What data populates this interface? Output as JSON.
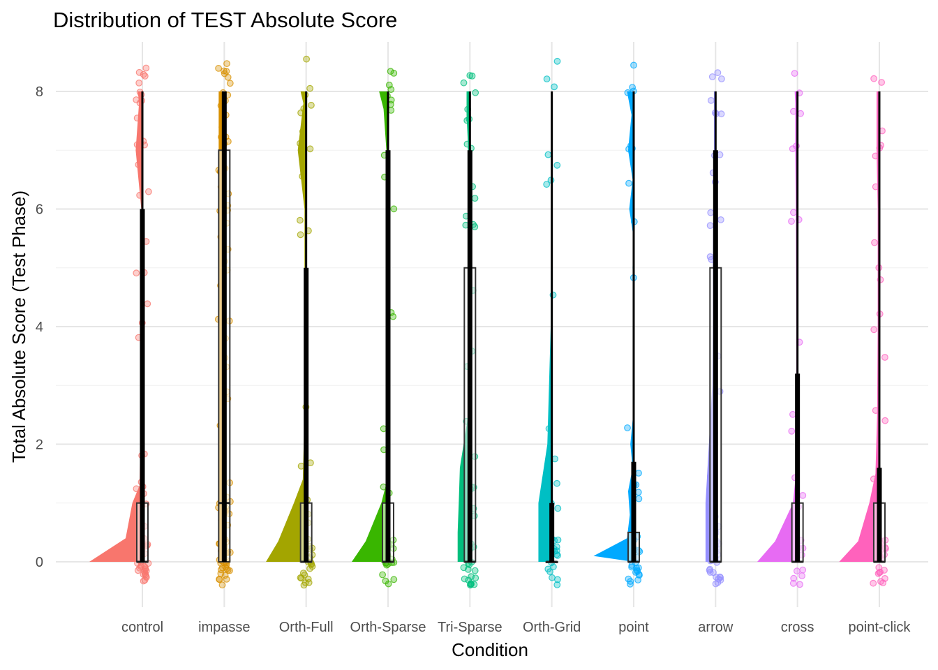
{
  "chart_data": {
    "type": "raincloud",
    "title": "Distribution of TEST Absolute Score",
    "xlabel": "Condition",
    "ylabel": "Total Absolute Score (Test Phase)",
    "ylim": [
      -0.8,
      8.6
    ],
    "yticks": [
      0,
      2,
      4,
      6,
      8
    ],
    "grid": true,
    "legend": "none",
    "categories": [
      "control",
      "impasse",
      "Orth-Full",
      "Orth-Sparse",
      "Tri-Sparse",
      "Orth-Grid",
      "point",
      "arrow",
      "cross",
      "point-click"
    ],
    "series": [
      {
        "category": "control",
        "color": "#F8766D",
        "box": {
          "q1": 0,
          "median": 0,
          "q3": 1
        },
        "interval": {
          "thick": [
            0,
            6
          ],
          "thin": [
            0,
            8
          ]
        },
        "density": [
          [
            0,
            0.95
          ],
          [
            0.4,
            0.3
          ],
          [
            1,
            0.18
          ],
          [
            1.3,
            0.05
          ],
          [
            2.5,
            0.03
          ],
          [
            4,
            0.03
          ],
          [
            5,
            0.03
          ],
          [
            6,
            0.02
          ],
          [
            7,
            0.12
          ],
          [
            7.8,
            0.06
          ],
          [
            8,
            0.08
          ]
        ],
        "points": [
          0,
          0,
          0,
          0,
          0,
          0,
          0,
          0,
          0,
          0,
          0,
          0,
          0,
          0,
          0,
          0,
          0,
          0,
          0,
          0,
          0,
          0,
          0,
          0,
          0,
          0,
          0,
          0,
          1,
          1,
          1,
          1,
          1,
          1,
          1,
          1,
          1,
          1.2,
          1.8,
          2,
          3.7,
          3.8,
          4.3,
          4.8,
          5,
          5.3,
          6,
          6.3,
          6.7,
          6.8,
          7,
          7.2,
          7.3,
          7.6,
          7.7,
          7.9,
          8,
          8,
          8,
          8,
          8,
          8.2,
          8.3
        ]
      },
      {
        "category": "impasse",
        "color": "#D89000",
        "box": {
          "q1": 0,
          "median": 1,
          "q3": 7
        },
        "interval": {
          "thick": [
            0,
            8
          ],
          "thin": [
            0,
            8
          ]
        },
        "density": [
          [
            0,
            0.1
          ],
          [
            0.5,
            0.1
          ],
          [
            1,
            0.1
          ],
          [
            2,
            0.1
          ],
          [
            4,
            0.1
          ],
          [
            6,
            0.1
          ],
          [
            7,
            0.1
          ],
          [
            8,
            0.1
          ]
        ],
        "points": [
          0,
          0,
          0,
          0,
          0,
          0,
          0,
          0,
          0,
          0,
          0,
          0,
          0,
          0,
          0,
          0,
          0,
          0,
          0,
          0,
          0,
          0,
          0,
          0,
          0,
          0,
          0,
          0,
          0,
          0,
          0,
          0,
          1,
          1,
          1,
          1,
          1,
          1,
          1,
          1,
          1,
          1,
          1,
          1,
          1.2,
          1.4,
          1.8,
          2,
          2.2,
          2.5,
          2.8,
          3,
          3.3,
          3.7,
          3.8,
          3.9,
          4,
          4.2,
          4.6,
          4.8,
          5,
          5.2,
          5.5,
          5.7,
          5.9,
          6,
          6,
          6.2,
          6.3,
          6.5,
          6.7,
          6.8,
          6.9,
          7,
          7,
          7,
          7,
          7.2,
          7.5,
          7.7,
          7.8,
          8,
          8,
          8,
          8,
          8,
          8,
          8,
          8.2,
          8.3,
          8.3
        ]
      },
      {
        "category": "Orth-Full",
        "color": "#A3A500",
        "box": {
          "q1": 0,
          "median": 0,
          "q3": 1
        },
        "interval": {
          "thick": [
            0,
            5
          ],
          "thin": [
            0,
            8
          ]
        },
        "density": [
          [
            0,
            0.72
          ],
          [
            0.35,
            0.5
          ],
          [
            1,
            0.22
          ],
          [
            1.4,
            0.06
          ],
          [
            2.5,
            0.03
          ],
          [
            4,
            0.03
          ],
          [
            5,
            0.03
          ],
          [
            6,
            0.03
          ],
          [
            7,
            0.15
          ],
          [
            7.8,
            0.05
          ],
          [
            8,
            0.1
          ]
        ],
        "points": [
          0,
          0,
          0,
          0,
          0,
          0,
          0,
          0,
          0,
          0,
          0,
          0,
          0,
          0,
          0,
          0,
          0,
          0,
          0,
          0,
          0,
          0,
          0,
          1,
          1,
          1,
          1,
          1,
          1,
          1.3,
          1.8,
          2,
          2.3,
          5.4,
          5.7,
          6.1,
          6.4,
          6.9,
          7,
          7.1,
          7.3,
          7.8,
          8,
          8,
          8.1,
          8.2,
          8.3
        ]
      },
      {
        "category": "Orth-Sparse",
        "color": "#39B600",
        "box": {
          "q1": 0,
          "median": 0,
          "q3": 1
        },
        "interval": {
          "thick": [
            0,
            7
          ],
          "thin": [
            0,
            8
          ]
        },
        "density": [
          [
            0,
            0.65
          ],
          [
            0.35,
            0.4
          ],
          [
            1,
            0.12
          ],
          [
            1.3,
            0.04
          ],
          [
            2.5,
            0.02
          ],
          [
            4,
            0.03
          ],
          [
            5,
            0.02
          ],
          [
            6,
            0.02
          ],
          [
            7,
            0.03
          ],
          [
            7.7,
            0.08
          ],
          [
            8,
            0.16
          ]
        ],
        "points": [
          0,
          0,
          0,
          0,
          0,
          0,
          0,
          0,
          0,
          0,
          0,
          0,
          0,
          0,
          0,
          0,
          0,
          0,
          0,
          0,
          1,
          1,
          1,
          1.2,
          2,
          2.3,
          4.4,
          4.4,
          6.1,
          6.6,
          7,
          7.8,
          7.9,
          8,
          8,
          8,
          8.3,
          8.3,
          8.3
        ]
      },
      {
        "category": "Tri-Sparse",
        "color": "#00BF7D",
        "box": {
          "q1": 0,
          "median": 0,
          "q3": 5
        },
        "interval": {
          "thick": [
            0,
            7
          ],
          "thin": [
            0,
            8
          ]
        },
        "density": [
          [
            0,
            0.22
          ],
          [
            0.5,
            0.22
          ],
          [
            1,
            0.2
          ],
          [
            1.6,
            0.18
          ],
          [
            2.5,
            0.03
          ],
          [
            4,
            0.02
          ],
          [
            5,
            0.02
          ],
          [
            6,
            0.02
          ],
          [
            7,
            0.03
          ],
          [
            7.6,
            0.06
          ],
          [
            8,
            0.06
          ]
        ],
        "points": [
          0,
          0,
          0,
          0,
          0,
          0,
          0,
          0,
          0,
          0,
          0,
          0,
          0,
          0,
          0,
          0,
          0,
          0,
          0,
          0,
          0,
          0,
          0,
          1,
          1,
          1,
          1,
          1,
          1,
          1,
          1.2,
          1.3,
          1.7,
          2.1,
          3,
          3.3,
          5,
          5.3,
          5.9,
          6,
          6,
          6.3,
          6.6,
          7,
          7.1,
          7.6,
          7.7,
          7.8,
          8,
          8,
          8.1,
          8.3
        ]
      },
      {
        "category": "Orth-Grid",
        "color": "#00BFC4",
        "box": {
          "q1": 0,
          "median": 0,
          "q3": 0
        },
        "interval": {
          "thick": [
            0,
            1
          ],
          "thin": [
            0,
            8
          ]
        },
        "density": [
          [
            0,
            0.24
          ],
          [
            0.5,
            0.24
          ],
          [
            1,
            0.24
          ],
          [
            2,
            0.08
          ],
          [
            4,
            0.02
          ],
          [
            6,
            0.01
          ],
          [
            7,
            0.01
          ],
          [
            8,
            0.01
          ]
        ],
        "points": [
          0,
          0,
          0,
          0,
          0,
          0,
          0,
          0,
          0,
          0,
          0,
          0,
          0,
          0,
          0,
          0,
          0,
          0,
          0.8,
          1,
          1,
          1,
          1.1,
          2.1,
          2.2,
          4.6,
          6.4,
          6.6,
          6.9,
          7.1,
          7.8,
          8.1,
          8.3
        ]
      },
      {
        "category": "point",
        "color": "#00A9FF",
        "box": {
          "q1": 0,
          "median": 0,
          "q3": 0.5
        },
        "interval": {
          "thick": [
            0,
            1.7
          ],
          "thin": [
            0,
            8
          ]
        },
        "density": [
          [
            0,
            0
          ],
          [
            0.1,
            0.72
          ],
          [
            0.4,
            0.12
          ],
          [
            0.8,
            0.07
          ],
          [
            1.2,
            0.1
          ],
          [
            1.6,
            0.02
          ],
          [
            2,
            0.06
          ],
          [
            2.6,
            0
          ],
          [
            4.6,
            0
          ],
          [
            5,
            0.02
          ],
          [
            5.5,
            0
          ],
          [
            6,
            0.08
          ],
          [
            6.5,
            0.02
          ],
          [
            7,
            0.1
          ],
          [
            7.6,
            0.04
          ],
          [
            8,
            0.12
          ]
        ],
        "points": [
          0,
          0,
          0,
          0,
          0,
          0,
          0,
          0,
          0,
          0,
          0,
          0,
          0,
          0,
          0,
          0,
          0,
          0,
          0,
          0.5,
          0.8,
          1,
          1,
          1.1,
          1.9,
          2.3,
          5.2,
          6,
          6.2,
          6.8,
          7,
          7.3,
          7.9,
          8.2,
          8.2,
          8.3
        ]
      },
      {
        "category": "arrow",
        "color": "#9590FF",
        "box": {
          "q1": 0,
          "median": 0,
          "q3": 5
        },
        "interval": {
          "thick": [
            0,
            7
          ],
          "thin": [
            0,
            8
          ]
        },
        "density": [
          [
            0,
            0.18
          ],
          [
            1,
            0.18
          ],
          [
            2,
            0.12
          ],
          [
            3,
            0.06
          ],
          [
            4,
            0.05
          ],
          [
            5,
            0.05
          ],
          [
            6,
            0.04
          ],
          [
            7,
            0.03
          ],
          [
            8,
            0.03
          ]
        ],
        "points": [
          0,
          0,
          0,
          0,
          0,
          0,
          0,
          0,
          0,
          0,
          0,
          0,
          0,
          0,
          0,
          0,
          0,
          0,
          0,
          0,
          0,
          0,
          0,
          0,
          0,
          0,
          0,
          0.8,
          1,
          1,
          1,
          1.2,
          1.4,
          2,
          2.9,
          3.7,
          5,
          5.3,
          5.7,
          6,
          6.1,
          6.3,
          6.7,
          6.8,
          7,
          7.7,
          7.8,
          7.9,
          8,
          8,
          8.2,
          8.3
        ]
      },
      {
        "category": "cross",
        "color": "#E76BF3",
        "box": {
          "q1": 0,
          "median": 0,
          "q3": 1
        },
        "interval": {
          "thick": [
            0,
            3.2
          ],
          "thin": [
            0,
            8
          ]
        },
        "density": [
          [
            0,
            0.72
          ],
          [
            0.35,
            0.4
          ],
          [
            1,
            0.08
          ],
          [
            1.5,
            0.03
          ],
          [
            2.5,
            0.02
          ],
          [
            4,
            0.02
          ],
          [
            6,
            0.03
          ],
          [
            7,
            0.04
          ],
          [
            7.8,
            0.04
          ],
          [
            8,
            0.05
          ]
        ],
        "points": [
          0,
          0,
          0,
          0,
          0,
          0,
          0,
          0,
          0,
          0,
          0,
          0,
          0,
          0,
          0,
          0,
          1,
          1.3,
          1.7,
          2,
          2.3,
          3.4,
          5.9,
          6.1,
          6.2,
          7,
          7.2,
          7.8,
          7.9,
          8,
          8.3
        ]
      },
      {
        "category": "point-click",
        "color": "#FF62BC",
        "box": {
          "q1": 0,
          "median": 0,
          "q3": 1
        },
        "interval": {
          "thick": [
            0,
            1.6
          ],
          "thin": [
            0,
            8
          ]
        },
        "density": [
          [
            0,
            0.72
          ],
          [
            0.35,
            0.38
          ],
          [
            1,
            0.18
          ],
          [
            1.5,
            0.07
          ],
          [
            2.5,
            0.04
          ],
          [
            4,
            0.03
          ],
          [
            5,
            0.03
          ],
          [
            6,
            0.03
          ],
          [
            7,
            0.05
          ],
          [
            8,
            0.05
          ]
        ],
        "points": [
          0,
          0,
          0,
          0,
          0,
          0,
          0,
          0,
          0,
          0,
          0,
          0,
          0,
          0,
          0,
          0,
          0,
          0,
          0,
          0,
          1,
          1.1,
          1.2,
          2.2,
          2.3,
          3.7,
          3.8,
          4.1,
          4.9,
          5,
          5.8,
          6,
          6.8,
          6.9,
          7.1,
          7.2,
          8.1,
          8.2
        ]
      }
    ]
  }
}
